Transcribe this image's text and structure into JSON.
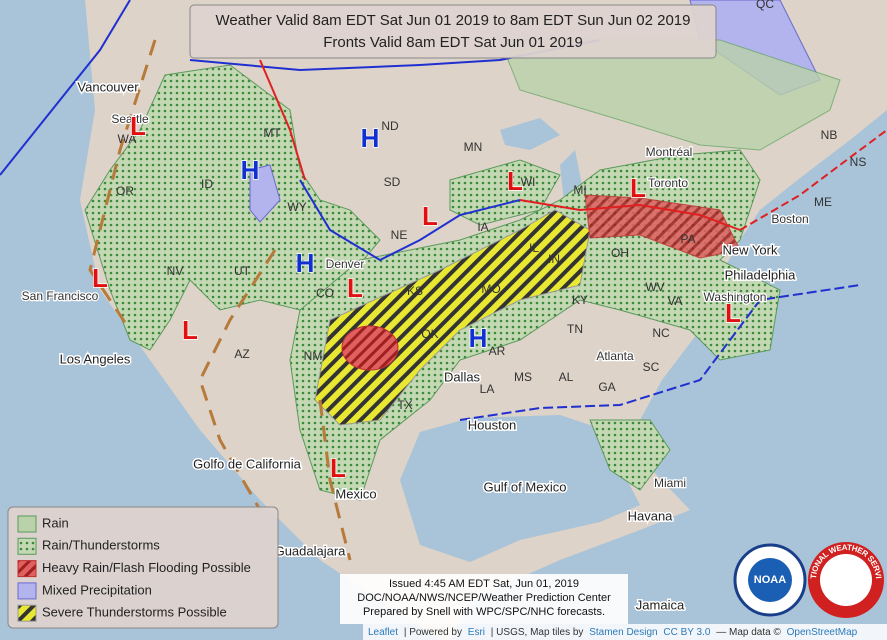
{
  "header": {
    "line1": "Weather Valid 8am EDT Sat Jun 01 2019 to 8am EDT Sun Jun 02 2019",
    "line2": "Fronts Valid 8am EDT Sat Jun 01 2019"
  },
  "legend": {
    "items": [
      "Rain",
      "Rain/Thunderstorms",
      "Heavy Rain/Flash Flooding Possible",
      "Mixed Precipitation",
      "Severe Thunderstorms Possible"
    ]
  },
  "issued": {
    "lines": [
      "Issued 4:45 AM EDT Sat, Jun 01, 2019",
      "DOC/NOAA/NWS/NCEP/Weather Prediction Center",
      "Prepared by Snell with WPC/SPC/NHC forecasts."
    ]
  },
  "attribution": {
    "leaflet": "Leaflet",
    "powered": "| Powered by",
    "esri": "Esri",
    "rest": "| USGS, Map tiles by",
    "stamen": "Stamen Design",
    "cc": "CC BY 3.0",
    "mapdata": "— Map data ©",
    "osm": "OpenStreetMap"
  },
  "places": [
    "Vancouver",
    "Seattle",
    "WA",
    "OR",
    "ID",
    "MT",
    "ND",
    "SD",
    "MN",
    "WY",
    "NE",
    "NV",
    "UT",
    "CO",
    "Denver",
    "San Francisco",
    "Los Angeles",
    "AZ",
    "NM",
    "KS",
    "MO",
    "IA",
    "WI",
    "MI",
    "IL",
    "OK",
    "TX",
    "Dallas",
    "AR",
    "LA",
    "MS",
    "AL",
    "GA",
    "Atlanta",
    "TN",
    "KY",
    "OH",
    "IN",
    "Toronto",
    "Montréal",
    "New York",
    "Philadelphia",
    "Washington",
    "Boston",
    "VA",
    "NC",
    "SC",
    "Houston",
    "Golfo de California",
    "Mexico",
    "Gulf of Mexico",
    "Miami",
    "Havana",
    "Jamaica",
    "Guadalajara",
    "QC",
    "NB",
    "NS",
    "ME",
    "PA",
    "WV"
  ],
  "pressure": [
    "H",
    "H",
    "H",
    "H",
    "L",
    "L",
    "L",
    "L",
    "L",
    "L",
    "L",
    "L",
    "L"
  ],
  "logos": {
    "noaa": "NOAA",
    "nws": "NATIONAL WEATHER SERVICE"
  }
}
